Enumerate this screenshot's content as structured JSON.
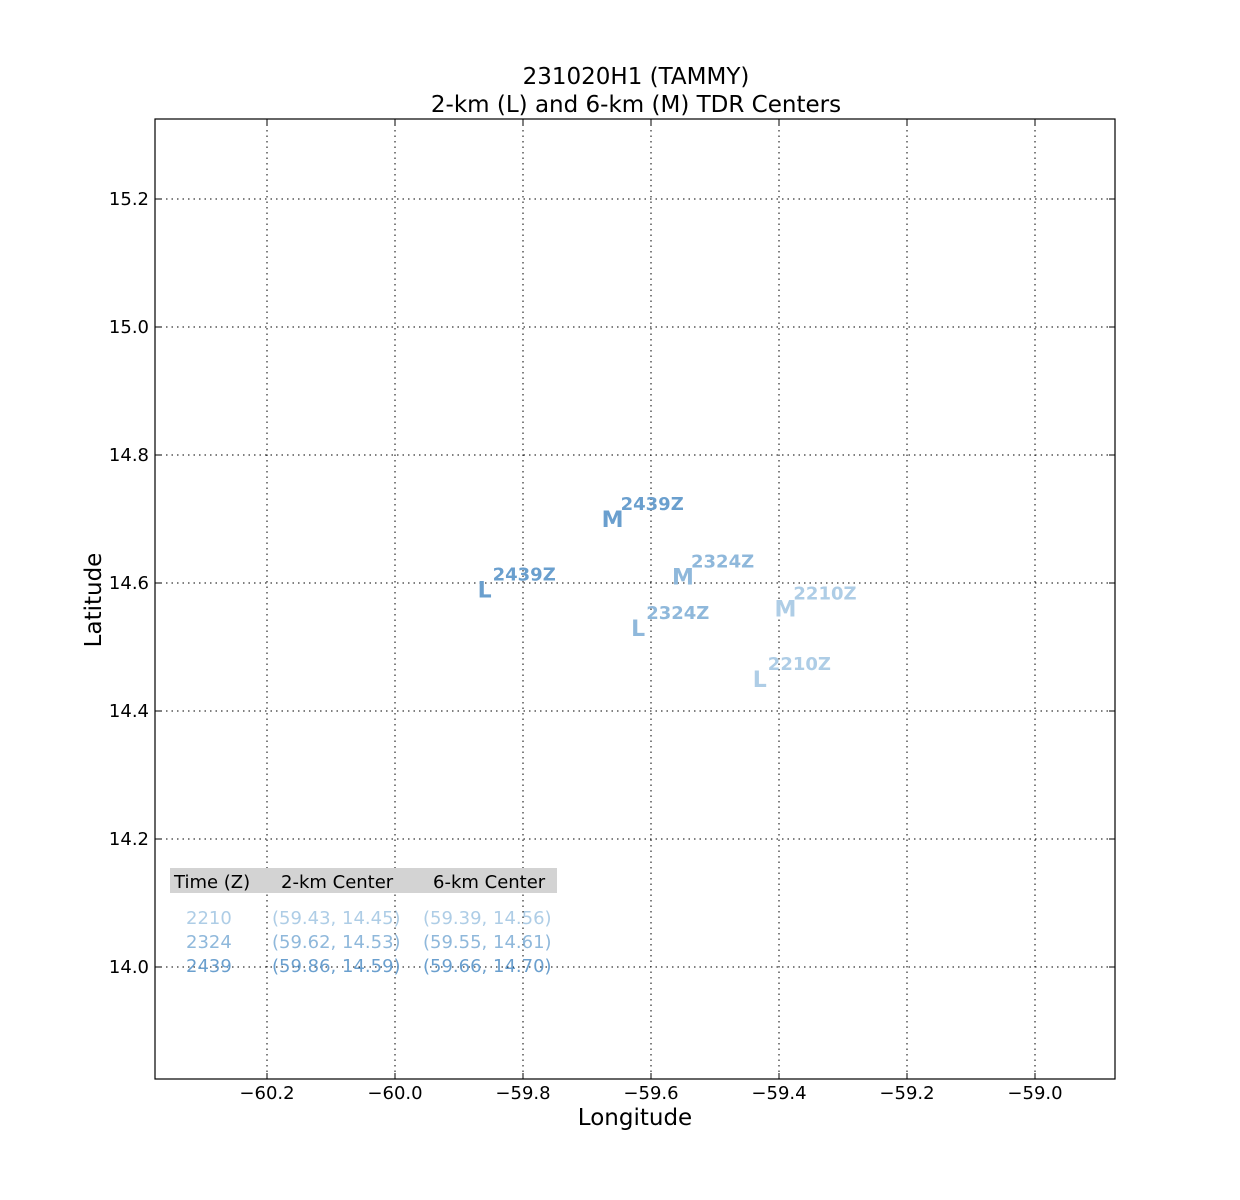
{
  "chart_data": {
    "type": "scatter",
    "title_line1": "231020H1 (TAMMY)",
    "title_line2": "2-km (L) and 6-km (M) TDR Centers",
    "xlabel": "Longitude",
    "ylabel": "Latitude",
    "xlim": [
      -60.375,
      -58.875
    ],
    "ylim": [
      13.825,
      15.325
    ],
    "xticks": [
      -60.2,
      -60.0,
      -59.8,
      -59.6,
      -59.4,
      -59.2,
      -59.0
    ],
    "xtick_labels": [
      "−60.2",
      "−60.0",
      "−59.8",
      "−59.6",
      "−59.4",
      "−59.2",
      "−59.0"
    ],
    "yticks": [
      14.0,
      14.2,
      14.4,
      14.6,
      14.8,
      15.0,
      15.2
    ],
    "ytick_labels": [
      "14.0",
      "14.2",
      "14.4",
      "14.6",
      "14.8",
      "15.0",
      "15.2"
    ],
    "grid": true,
    "series": [
      {
        "time": "2210",
        "label": "2210Z",
        "color": "#aecde6",
        "L": {
          "lon": -59.43,
          "lat": 14.45
        },
        "M": {
          "lon": -59.39,
          "lat": 14.56
        }
      },
      {
        "time": "2324",
        "label": "2324Z",
        "color": "#8fb8db",
        "L": {
          "lon": -59.62,
          "lat": 14.53
        },
        "M": {
          "lon": -59.55,
          "lat": 14.61
        }
      },
      {
        "time": "2439",
        "label": "2439Z",
        "color": "#6a9fce",
        "L": {
          "lon": -59.86,
          "lat": 14.59
        },
        "M": {
          "lon": -59.66,
          "lat": 14.7
        }
      }
    ],
    "marker_L": "L",
    "marker_M": "M",
    "table": {
      "headers": [
        "Time (Z)",
        "2-km Center",
        "6-km Center"
      ],
      "rows": [
        {
          "time": "2210",
          "center2": "(59.43, 14.45)",
          "center6": "(59.39, 14.56)"
        },
        {
          "time": "2324",
          "center2": "(59.62, 14.53)",
          "center6": "(59.55, 14.61)"
        },
        {
          "time": "2439",
          "center2": "(59.86, 14.59)",
          "center6": "(59.66, 14.70)"
        }
      ]
    }
  }
}
